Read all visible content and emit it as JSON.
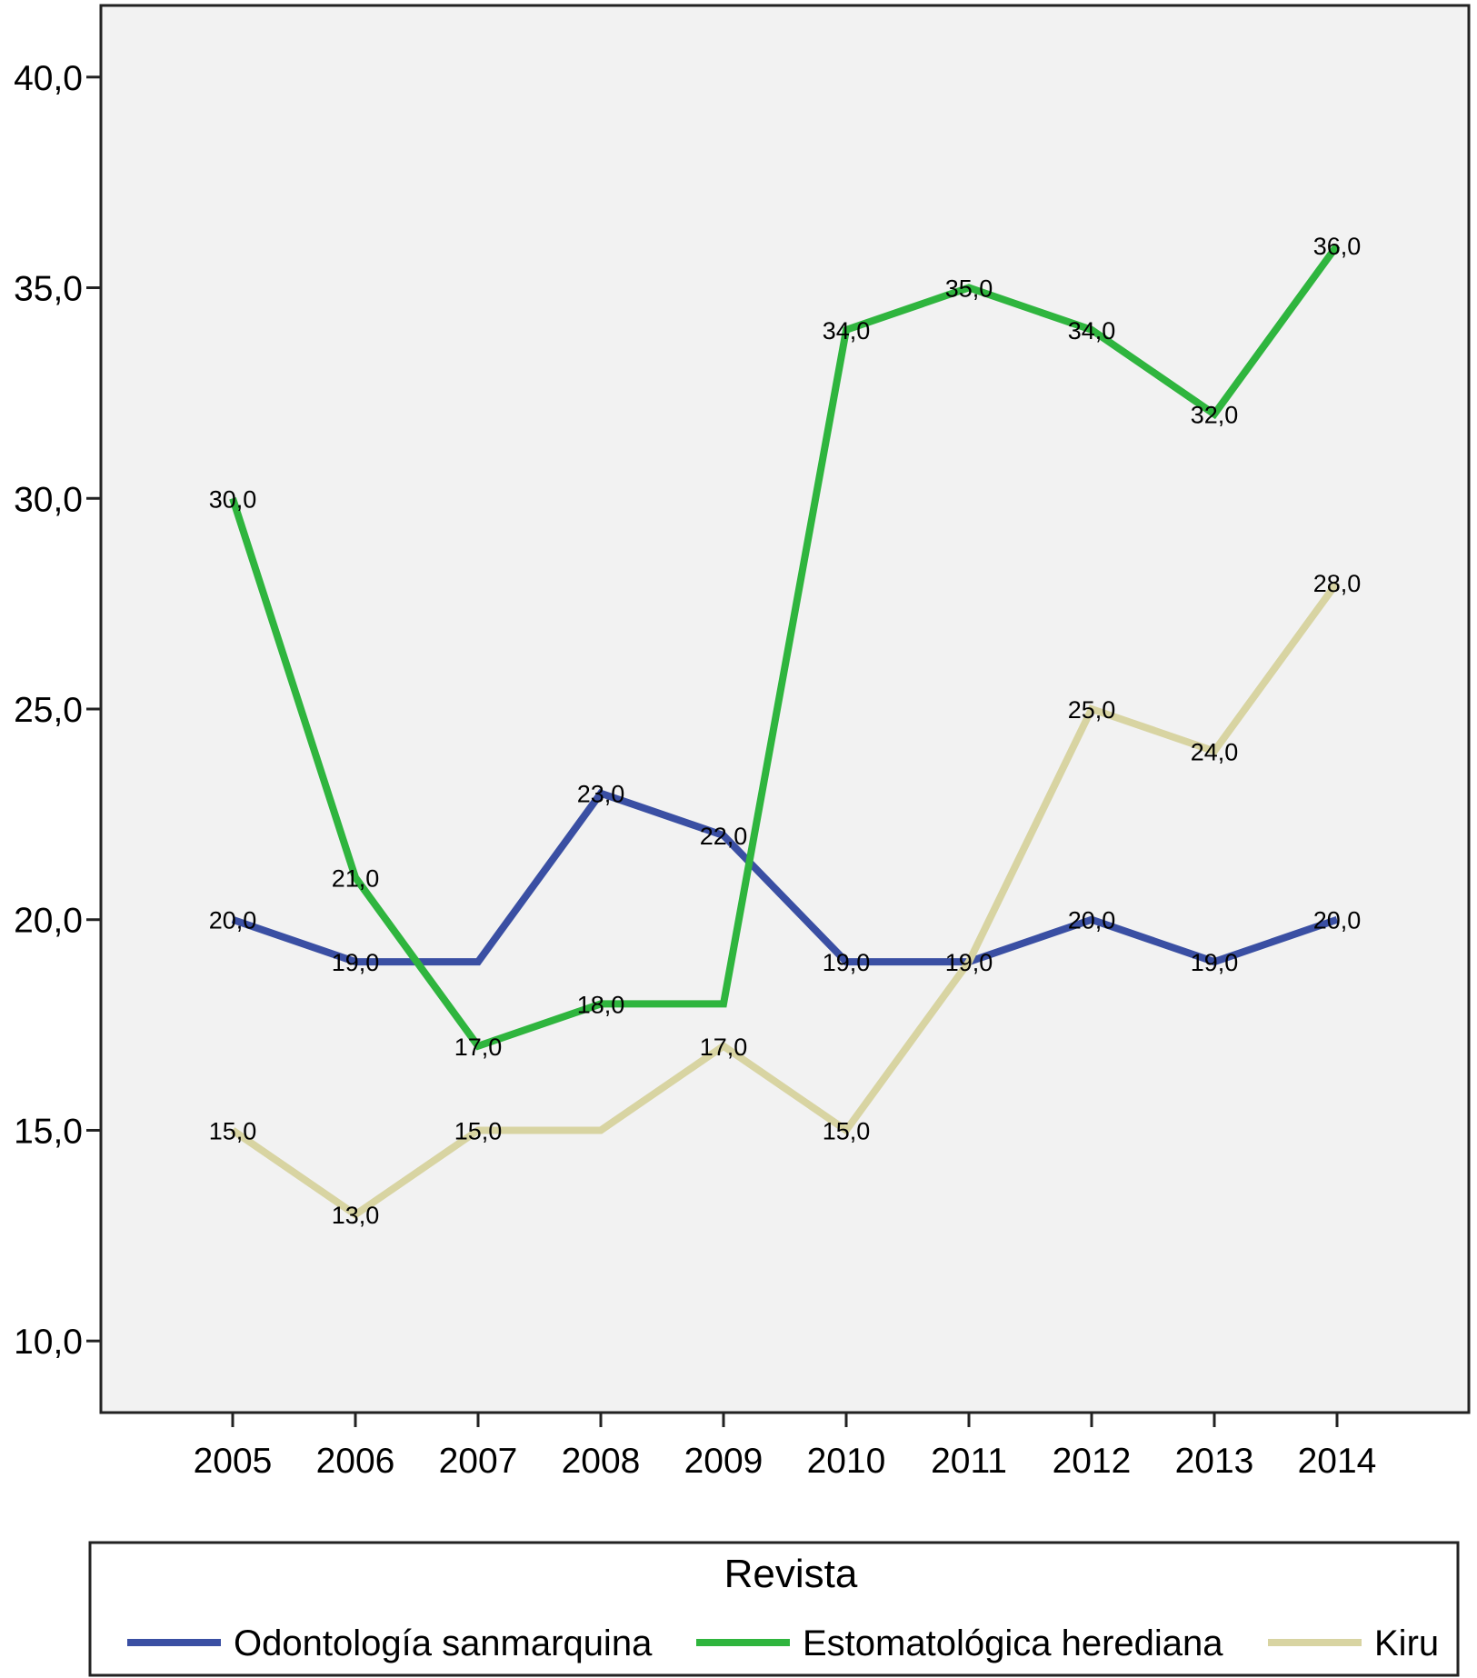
{
  "chart_data": {
    "type": "line",
    "categories": [
      "2005",
      "2006",
      "2007",
      "2008",
      "2009",
      "2010",
      "2011",
      "2012",
      "2013",
      "2014"
    ],
    "series": [
      {
        "name": "Odontología sanmarquina",
        "color": "#3a4fa3",
        "values": [
          20,
          19,
          19,
          23,
          22,
          19,
          19,
          20,
          19,
          20
        ],
        "labels": [
          "20,0",
          "19,0",
          "",
          "23,0",
          "22,0",
          "19,0",
          "19,0",
          "20,0",
          "19,0",
          "20,0"
        ]
      },
      {
        "name": "Estomatológica herediana",
        "color": "#2fb53e",
        "values": [
          30,
          21,
          17,
          18,
          18,
          34,
          35,
          34,
          32,
          36
        ],
        "labels": [
          "30,0",
          "21,0",
          "17,0",
          "18,0",
          "",
          "34,0",
          "35,0",
          "34,0",
          "32,0",
          "36,0"
        ]
      },
      {
        "name": "Kiru",
        "color": "#d8d4a2",
        "values": [
          15,
          13,
          15,
          15,
          17,
          15,
          19,
          25,
          24,
          28
        ],
        "labels": [
          "15,0",
          "13,0",
          "15,0",
          "",
          "17,0",
          "15,0",
          "",
          "25,0",
          "24,0",
          "28,0"
        ]
      }
    ],
    "ylim": [
      8.3,
      41.7
    ],
    "yticks": [
      10,
      15,
      20,
      25,
      30,
      35,
      40
    ],
    "ytick_labels": [
      "10,0",
      "15,0",
      "20,0",
      "25,0",
      "30,0",
      "35,0",
      "40,0"
    ],
    "title": "",
    "xlabel": "",
    "ylabel": "",
    "legend_title": "Revista",
    "legend_position": "bottom",
    "plot_background": "#f2f2f2",
    "grid": false
  }
}
